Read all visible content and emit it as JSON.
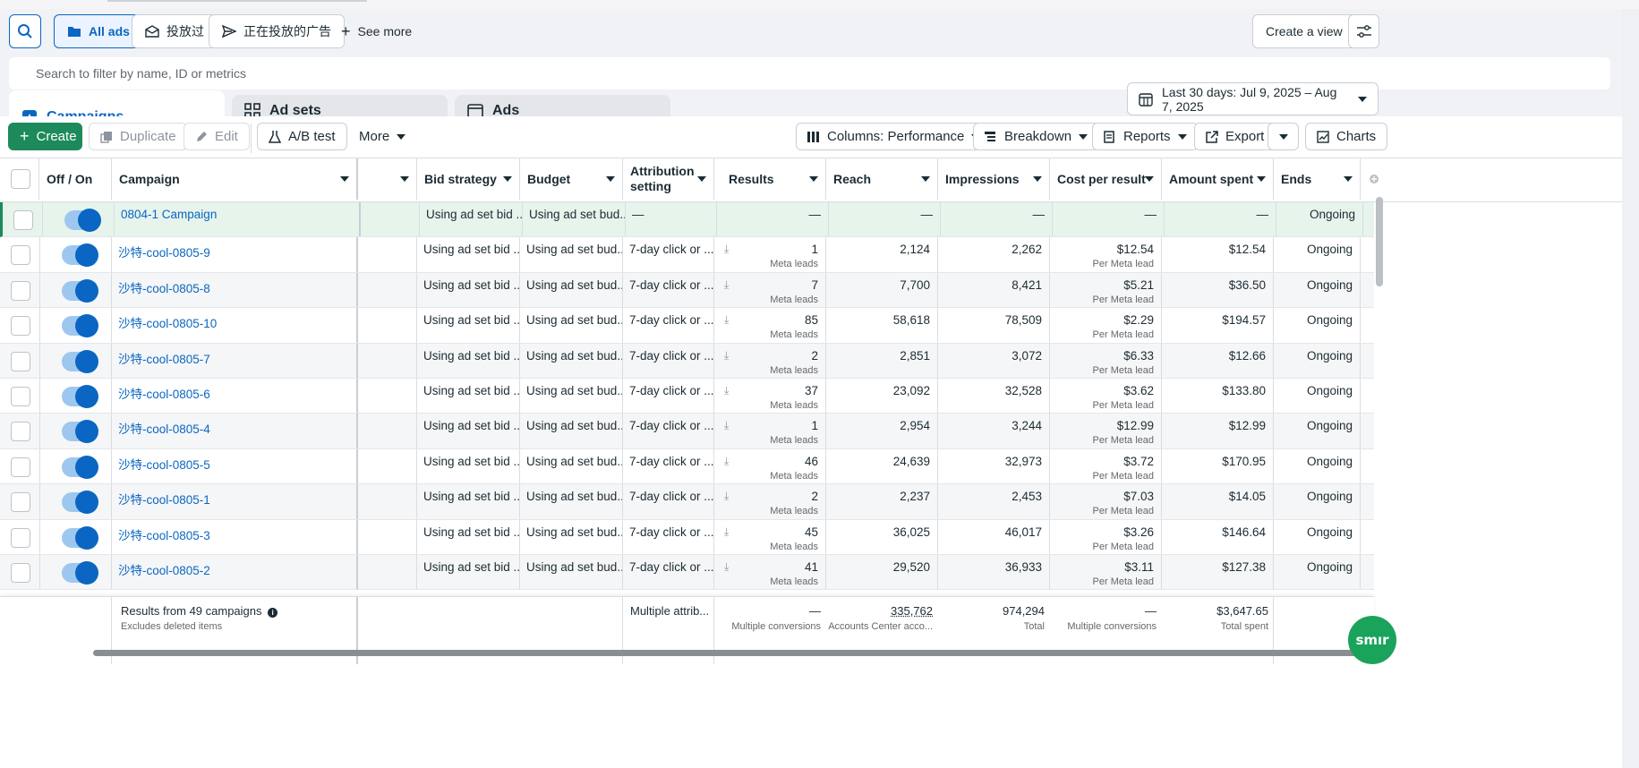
{
  "filter_bar": {
    "all_ads": "All ads",
    "preset_1": "投放过",
    "preset_2": "正在投放的广告",
    "see_more": "See more",
    "create_view": "Create a view"
  },
  "search": {
    "placeholder": "Search to filter by name, ID or metrics"
  },
  "level_tabs": {
    "campaigns": "Campaigns",
    "ad_sets": "Ad sets",
    "ads": "Ads"
  },
  "date_range": "Last 30 days: Jul 9, 2025 – Aug 7, 2025",
  "toolbar": {
    "create": "Create",
    "duplicate": "Duplicate",
    "edit": "Edit",
    "ab_test": "A/B test",
    "more": "More",
    "columns": "Columns: Performance",
    "breakdown": "Breakdown",
    "reports": "Reports",
    "export": "Export",
    "charts": "Charts"
  },
  "columns": {
    "off_on": "Off / On",
    "campaign": "Campaign",
    "bid_strategy": "Bid strategy",
    "budget": "Budget",
    "attribution": "Attribution setting",
    "results": "Results",
    "reach": "Reach",
    "impressions": "Impressions",
    "cost_per_result": "Cost per result",
    "amount_spent": "Amount spent",
    "ends": "Ends"
  },
  "rows": [
    {
      "name": "0804-1 Campaign",
      "bid": "Using ad set bid ...",
      "budget": "Using ad set bud...",
      "attribution": "—",
      "results": "—",
      "results_sub": "",
      "reach": "—",
      "impressions": "—",
      "cpr": "—",
      "cpr_sub": "",
      "spent": "—",
      "ends": "Ongoing"
    },
    {
      "name": "沙特-cool-0805-9",
      "bid": "Using ad set bid ...",
      "budget": "Using ad set bud...",
      "attribution": "7-day click or ...",
      "results": "1",
      "results_sub": "Meta leads",
      "reach": "2,124",
      "impressions": "2,262",
      "cpr": "$12.54",
      "cpr_sub": "Per Meta lead",
      "spent": "$12.54",
      "ends": "Ongoing"
    },
    {
      "name": "沙特-cool-0805-8",
      "bid": "Using ad set bid ...",
      "budget": "Using ad set bud...",
      "attribution": "7-day click or ...",
      "results": "7",
      "results_sub": "Meta leads",
      "reach": "7,700",
      "impressions": "8,421",
      "cpr": "$5.21",
      "cpr_sub": "Per Meta lead",
      "spent": "$36.50",
      "ends": "Ongoing"
    },
    {
      "name": "沙特-cool-0805-10",
      "bid": "Using ad set bid ...",
      "budget": "Using ad set bud...",
      "attribution": "7-day click or ...",
      "results": "85",
      "results_sub": "Meta leads",
      "reach": "58,618",
      "impressions": "78,509",
      "cpr": "$2.29",
      "cpr_sub": "Per Meta lead",
      "spent": "$194.57",
      "ends": "Ongoing"
    },
    {
      "name": "沙特-cool-0805-7",
      "bid": "Using ad set bid ...",
      "budget": "Using ad set bud...",
      "attribution": "7-day click or ...",
      "results": "2",
      "results_sub": "Meta leads",
      "reach": "2,851",
      "impressions": "3,072",
      "cpr": "$6.33",
      "cpr_sub": "Per Meta lead",
      "spent": "$12.66",
      "ends": "Ongoing"
    },
    {
      "name": "沙特-cool-0805-6",
      "bid": "Using ad set bid ...",
      "budget": "Using ad set bud...",
      "attribution": "7-day click or ...",
      "results": "37",
      "results_sub": "Meta leads",
      "reach": "23,092",
      "impressions": "32,528",
      "cpr": "$3.62",
      "cpr_sub": "Per Meta lead",
      "spent": "$133.80",
      "ends": "Ongoing"
    },
    {
      "name": "沙特-cool-0805-4",
      "bid": "Using ad set bid ...",
      "budget": "Using ad set bud...",
      "attribution": "7-day click or ...",
      "results": "1",
      "results_sub": "Meta leads",
      "reach": "2,954",
      "impressions": "3,244",
      "cpr": "$12.99",
      "cpr_sub": "Per Meta lead",
      "spent": "$12.99",
      "ends": "Ongoing"
    },
    {
      "name": "沙特-cool-0805-5",
      "bid": "Using ad set bid ...",
      "budget": "Using ad set bud...",
      "attribution": "7-day click or ...",
      "results": "46",
      "results_sub": "Meta leads",
      "reach": "24,639",
      "impressions": "32,973",
      "cpr": "$3.72",
      "cpr_sub": "Per Meta lead",
      "spent": "$170.95",
      "ends": "Ongoing"
    },
    {
      "name": "沙特-cool-0805-1",
      "bid": "Using ad set bid ...",
      "budget": "Using ad set bud...",
      "attribution": "7-day click or ...",
      "results": "2",
      "results_sub": "Meta leads",
      "reach": "2,237",
      "impressions": "2,453",
      "cpr": "$7.03",
      "cpr_sub": "Per Meta lead",
      "spent": "$14.05",
      "ends": "Ongoing"
    },
    {
      "name": "沙特-cool-0805-3",
      "bid": "Using ad set bid ...",
      "budget": "Using ad set bud...",
      "attribution": "7-day click or ...",
      "results": "45",
      "results_sub": "Meta leads",
      "reach": "36,025",
      "impressions": "46,017",
      "cpr": "$3.26",
      "cpr_sub": "Per Meta lead",
      "spent": "$146.64",
      "ends": "Ongoing"
    },
    {
      "name": "沙特-cool-0805-2",
      "bid": "Using ad set bid ...",
      "budget": "Using ad set bud...",
      "attribution": "7-day click or ...",
      "results": "41",
      "results_sub": "Meta leads",
      "reach": "29,520",
      "impressions": "36,933",
      "cpr": "$3.11",
      "cpr_sub": "Per Meta lead",
      "spent": "$127.38",
      "ends": "Ongoing"
    }
  ],
  "footer": {
    "results_label": "Results from 49 campaigns",
    "excludes": "Excludes deleted items",
    "attribution": "Multiple attrib...",
    "results": "—",
    "results_sub": "Multiple conversions",
    "reach": "335,762",
    "reach_sub": "Accounts Center acco...",
    "impressions": "974,294",
    "impressions_sub": "Total",
    "cpr": "—",
    "cpr_sub": "Multiple conversions",
    "spent": "$3,647.65",
    "spent_sub": "Total spent"
  },
  "badge": "smır",
  "colors": {
    "accent": "#0a66c2",
    "create_green": "#1d8a5b",
    "selected_row": "#e6f4ec"
  },
  "icons": [
    "search-icon",
    "folder-icon",
    "envelope-icon",
    "send-icon",
    "plus-icon",
    "settings-sliders-icon",
    "campaign-flag-icon",
    "grid-icon",
    "ad-page-icon",
    "calendar-icon",
    "duplicate-icon",
    "pencil-icon",
    "flask-icon",
    "columns-icon",
    "breakdown-icon",
    "reports-icon",
    "export-icon",
    "chart-icon",
    "info-icon",
    "download-icon"
  ]
}
